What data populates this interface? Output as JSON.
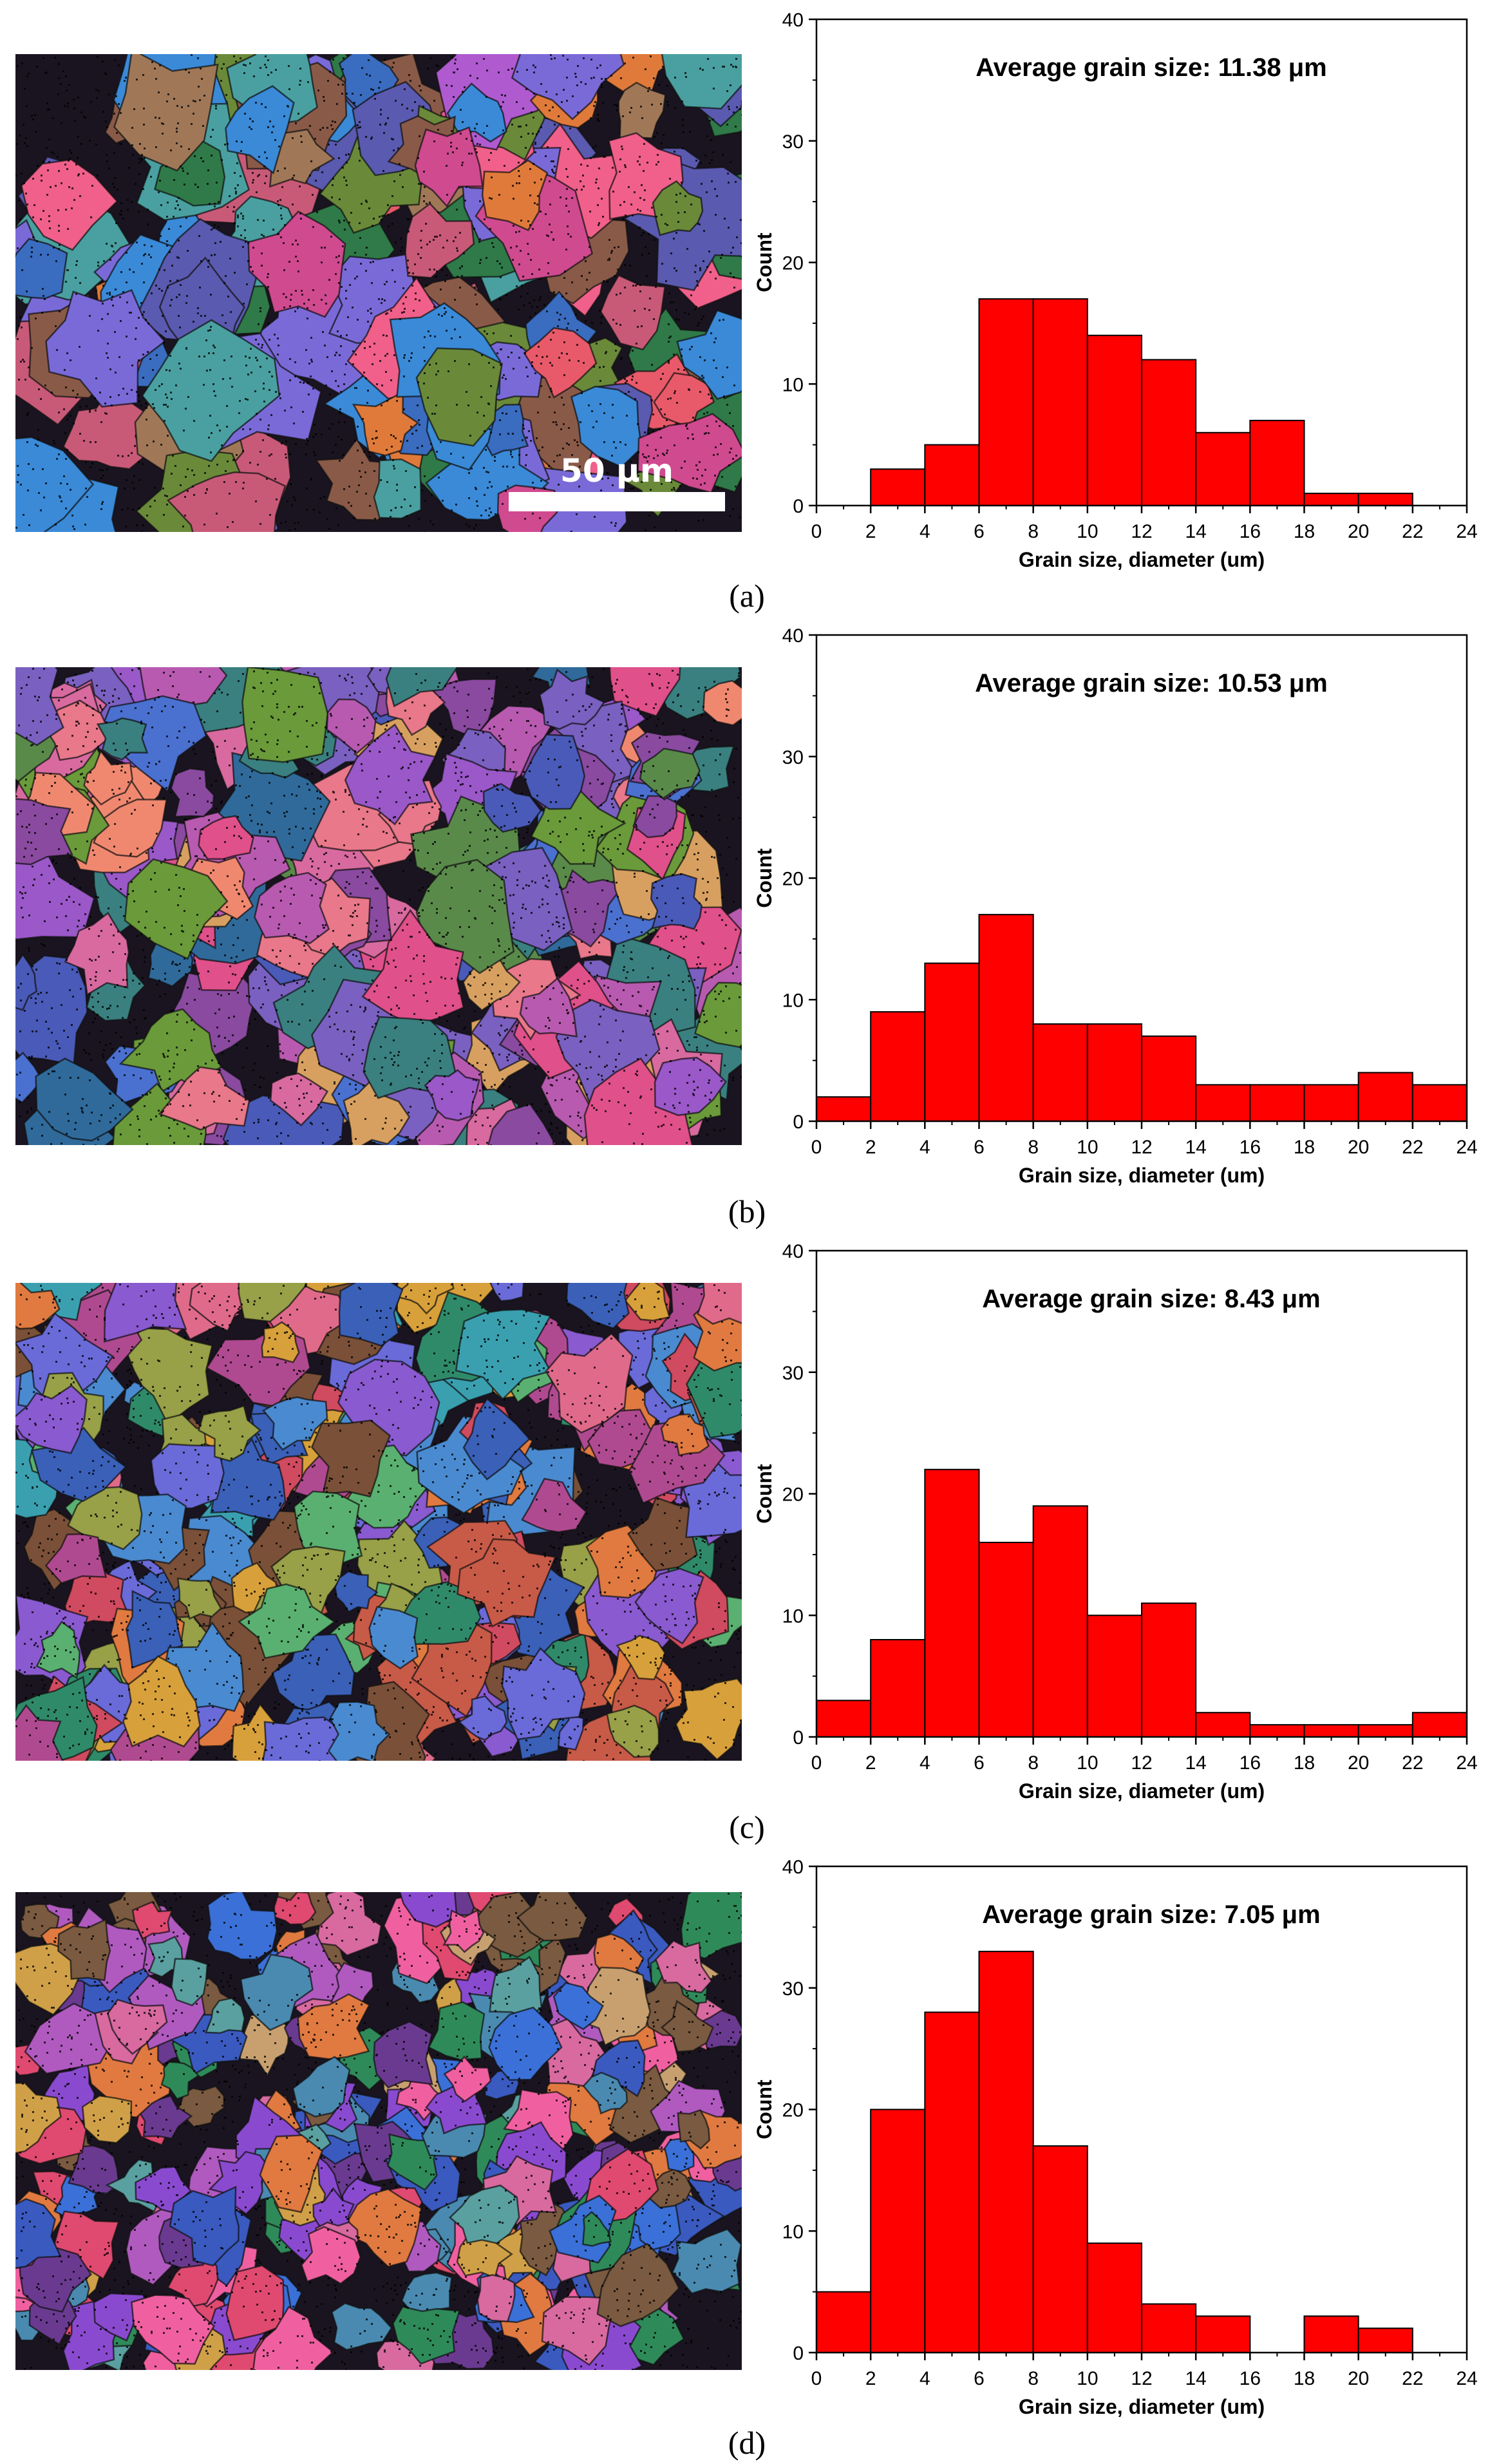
{
  "colors": {
    "bar_fill": "#ff0000",
    "bar_stroke": "#000000",
    "scale_bar": "#ffffff"
  },
  "scale_bar_label": "50 μm",
  "chart_data": [
    {
      "type": "bar",
      "panel_label": "(a)",
      "title": "Average grain size: 11.38 μm",
      "xlabel": "Grain size, diameter (um)",
      "ylabel": "Count",
      "bin_width": 2,
      "x": [
        0,
        2,
        4,
        6,
        8,
        10,
        12,
        14,
        16,
        18,
        20,
        22
      ],
      "values": [
        0,
        3,
        5,
        17,
        17,
        14,
        12,
        6,
        7,
        1,
        1,
        0
      ],
      "xlim": [
        0,
        24
      ],
      "ylim": [
        0,
        40
      ],
      "xticks": [
        0,
        2,
        4,
        6,
        8,
        10,
        12,
        14,
        16,
        18,
        20,
        22,
        24
      ],
      "yticks": [
        0,
        10,
        20,
        30,
        40
      ]
    },
    {
      "type": "bar",
      "panel_label": "(b)",
      "title": "Average grain size: 10.53 μm",
      "xlabel": "Grain size, diameter (um)",
      "ylabel": "Count",
      "bin_width": 2,
      "x": [
        0,
        2,
        4,
        6,
        8,
        10,
        12,
        14,
        16,
        18,
        20,
        22
      ],
      "values": [
        2,
        9,
        13,
        17,
        8,
        8,
        7,
        3,
        3,
        3,
        4,
        3
      ],
      "xlim": [
        0,
        24
      ],
      "ylim": [
        0,
        40
      ],
      "xticks": [
        0,
        2,
        4,
        6,
        8,
        10,
        12,
        14,
        16,
        18,
        20,
        22,
        24
      ],
      "yticks": [
        0,
        10,
        20,
        30,
        40
      ]
    },
    {
      "type": "bar",
      "panel_label": "(c)",
      "title": "Average grain size: 8.43 μm",
      "xlabel": "Grain size, diameter (um)",
      "ylabel": "Count",
      "bin_width": 2,
      "x": [
        0,
        2,
        4,
        6,
        8,
        10,
        12,
        14,
        16,
        18,
        20,
        22
      ],
      "values": [
        3,
        8,
        22,
        16,
        19,
        10,
        11,
        2,
        1,
        1,
        1,
        2
      ],
      "xlim": [
        0,
        24
      ],
      "ylim": [
        0,
        40
      ],
      "xticks": [
        0,
        2,
        4,
        6,
        8,
        10,
        12,
        14,
        16,
        18,
        20,
        22,
        24
      ],
      "yticks": [
        0,
        10,
        20,
        30,
        40
      ]
    },
    {
      "type": "bar",
      "panel_label": "(d)",
      "title": "Average grain size: 7.05 μm",
      "xlabel": "Grain size, diameter (um)",
      "ylabel": "Count",
      "bin_width": 2,
      "x": [
        0,
        2,
        4,
        6,
        8,
        10,
        12,
        14,
        16,
        18,
        20,
        22
      ],
      "values": [
        5,
        20,
        28,
        33,
        17,
        9,
        4,
        3,
        0,
        3,
        2,
        0
      ],
      "xlim": [
        0,
        24
      ],
      "ylim": [
        0,
        40
      ],
      "xticks": [
        0,
        2,
        4,
        6,
        8,
        10,
        12,
        14,
        16,
        18,
        20,
        22,
        24
      ],
      "yticks": [
        0,
        10,
        20,
        30,
        40
      ]
    }
  ]
}
